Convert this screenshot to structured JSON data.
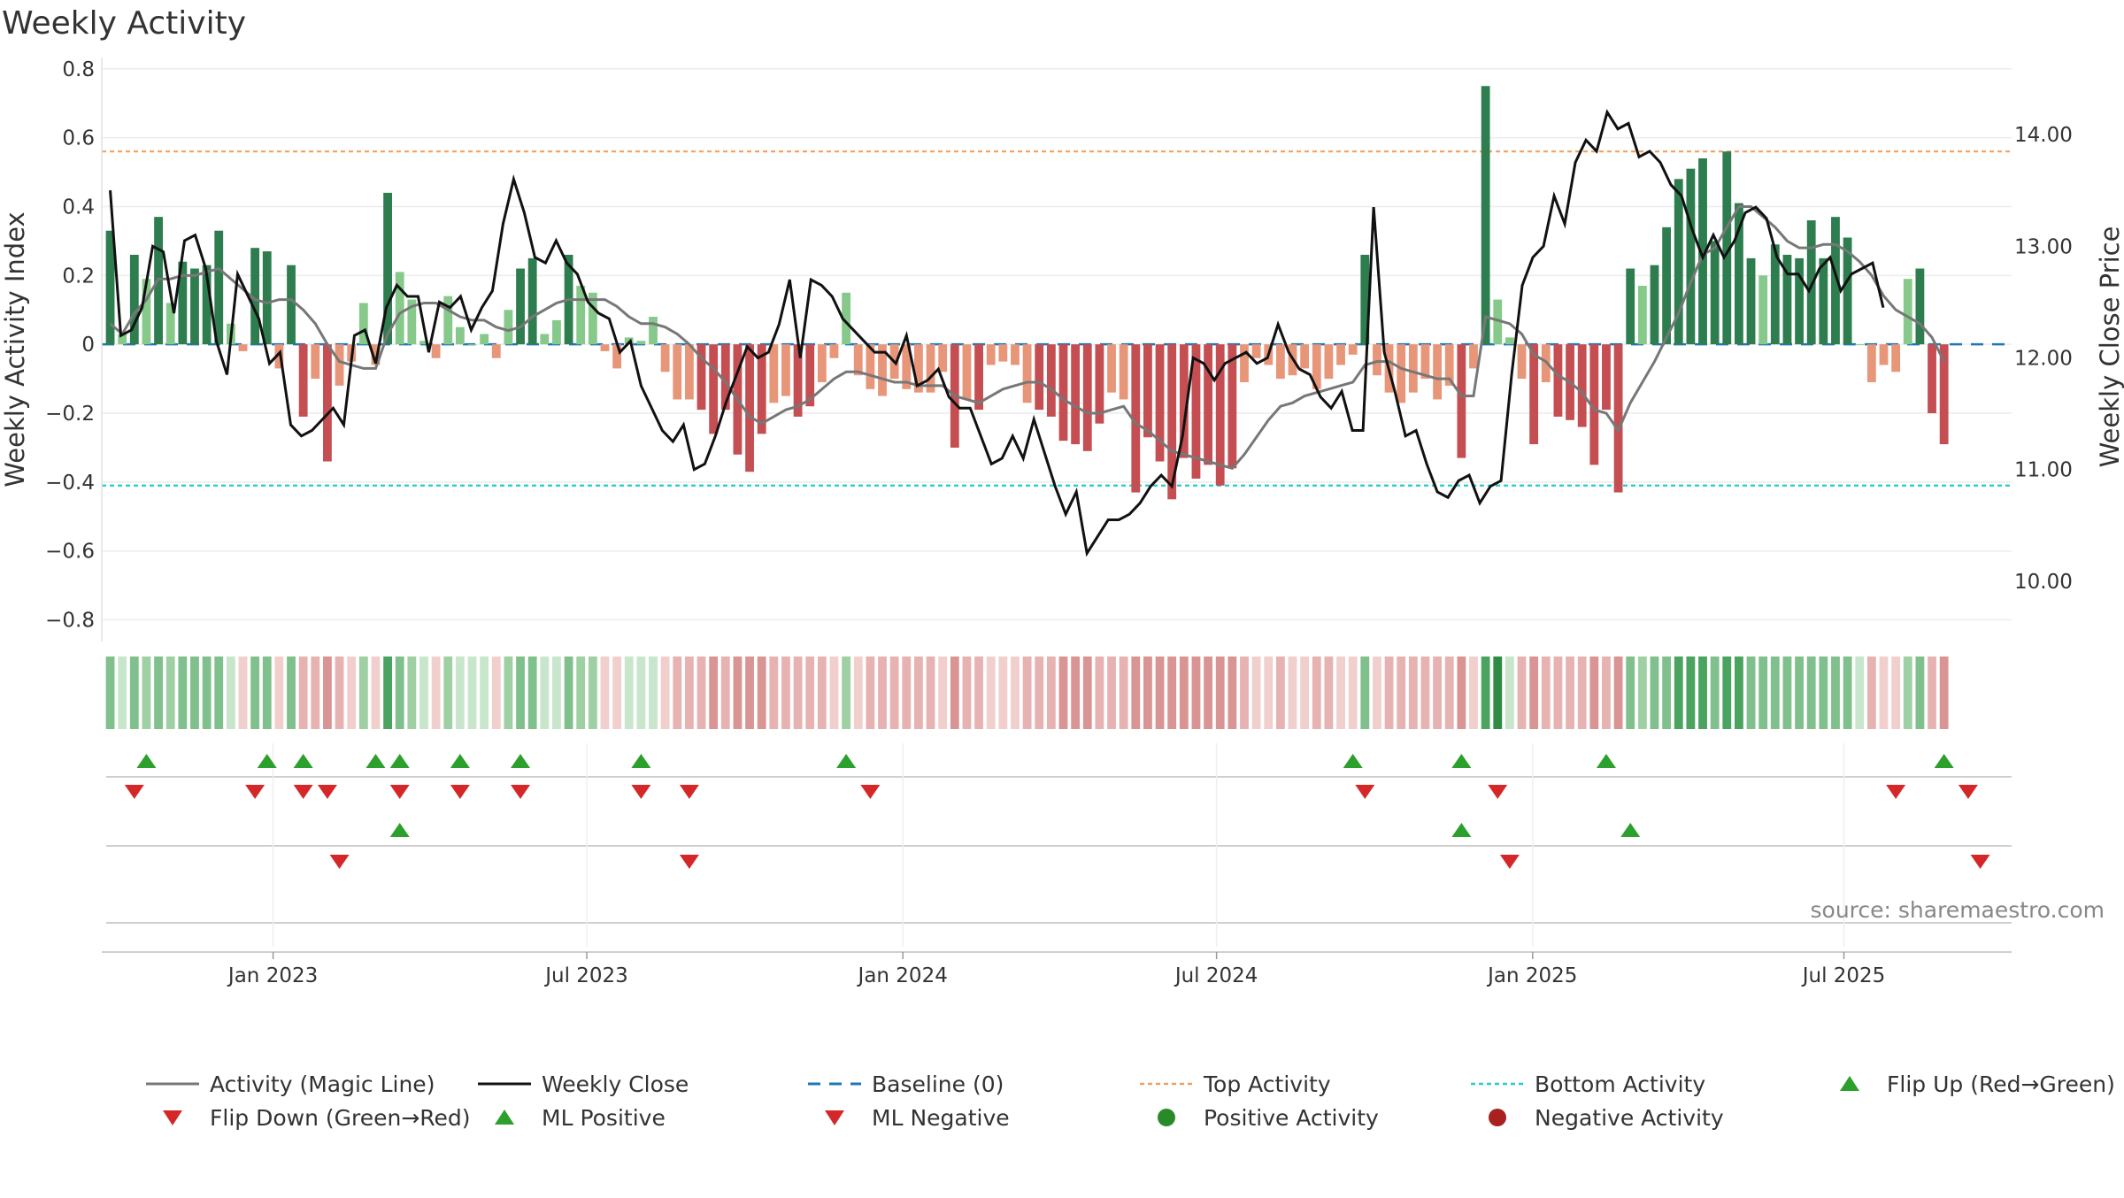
{
  "page": {
    "title": "Weekly Activity"
  },
  "source_text": "source: sharemaestro.com",
  "colors": {
    "dark_green": "#2e7d4f",
    "mid_green": "#5aaa6e",
    "light_green": "#86c98a",
    "pale_green": "#c4e6c6",
    "dark_red": "#c44e52",
    "mid_red": "#d9757a",
    "salmon": "#e8967a",
    "pale_red": "#f0c4c2",
    "magic_line": "#777777",
    "close_line": "#111111",
    "baseline": "#1f77b4",
    "top_line": "#f0a060",
    "bottom_line": "#22cccc",
    "flip_up": "#2ca02c",
    "flip_down": "#d62728"
  },
  "legend": [
    {
      "label": "Activity (Magic Line)",
      "icon": "gray-line"
    },
    {
      "label": "Weekly Close",
      "icon": "black-line"
    },
    {
      "label": "Baseline (0)",
      "icon": "blue-dashed-line"
    },
    {
      "label": "Top Activity",
      "icon": "orange-dotted-line"
    },
    {
      "label": "Bottom Activity",
      "icon": "cyan-dotted-line"
    },
    {
      "label": "Flip Up (Red→Green)",
      "icon": "green-up-triangle"
    },
    {
      "label": "Flip Down (Green→Red)",
      "icon": "red-down-triangle"
    },
    {
      "label": "ML Positive",
      "icon": "green-up-triangle"
    },
    {
      "label": "ML Negative",
      "icon": "red-down-triangle"
    },
    {
      "label": "Positive Activity",
      "icon": "green-dot"
    },
    {
      "label": "Negative Activity",
      "icon": "red-dot"
    }
  ],
  "chart_data": {
    "type": "bar",
    "title": "Weekly Activity",
    "ylabel": "Weekly Activity Index",
    "y2label": "Weekly Close Price",
    "ylim": [
      -0.85,
      0.82
    ],
    "y2lim": [
      9.5,
      14.65
    ],
    "yticks": [
      -0.8,
      -0.6,
      -0.4,
      -0.2,
      0,
      0.2,
      0.4,
      0.6,
      0.8
    ],
    "yticklabels": [
      "−0.8",
      "−0.6",
      "−0.4",
      "−0.2",
      "0",
      "0.2",
      "0.4",
      "0.6",
      "0.8"
    ],
    "y2ticks": [
      10,
      11,
      12,
      13,
      14
    ],
    "y2ticklabels": [
      "10.00",
      "11.00",
      "12.00",
      "13.00",
      "14.00"
    ],
    "x_start_date": "2022-10-10",
    "x_range_weeks": [
      -0.7,
      157.6
    ],
    "xticks": [
      {
        "week": 13.5,
        "label": "Jan 2023"
      },
      {
        "week": 39.5,
        "label": "Jul 2023"
      },
      {
        "week": 65.7,
        "label": "Jan 2024"
      },
      {
        "week": 91.7,
        "label": "Jul 2024"
      },
      {
        "week": 117.9,
        "label": "Jan 2025"
      },
      {
        "week": 143.7,
        "label": "Jul 2025"
      }
    ],
    "top_activity": 0.56,
    "bottom_activity": -0.41,
    "series": [
      {
        "name": "Weekly Activity Index (bars)",
        "values": [
          0.33,
          0.03,
          0.26,
          0.19,
          0.37,
          0.12,
          0.24,
          0.22,
          0.23,
          0.33,
          0.06,
          -0.02,
          0.28,
          0.27,
          -0.07,
          0.23,
          -0.21,
          -0.1,
          -0.34,
          -0.12,
          -0.05,
          0.12,
          -0.06,
          0.44,
          0.21,
          0.13,
          0.01,
          -0.04,
          0.14,
          0.05,
          0,
          0.03,
          -0.04,
          0.1,
          0.22,
          0.25,
          0.03,
          0.07,
          0.26,
          0.17,
          0.15,
          -0.02,
          -0.07,
          0.02,
          0.01,
          0.08,
          -0.08,
          -0.16,
          -0.16,
          -0.19,
          -0.26,
          -0.19,
          -0.32,
          -0.37,
          -0.26,
          -0.17,
          -0.15,
          -0.21,
          -0.18,
          -0.11,
          -0.04,
          0.15,
          -0.09,
          -0.13,
          -0.15,
          -0.1,
          -0.13,
          -0.14,
          -0.14,
          -0.08,
          -0.3,
          -0.16,
          -0.19,
          -0.06,
          -0.05,
          -0.06,
          -0.17,
          -0.19,
          -0.21,
          -0.28,
          -0.29,
          -0.31,
          -0.23,
          -0.14,
          -0.16,
          -0.43,
          -0.27,
          -0.34,
          -0.45,
          -0.33,
          -0.39,
          -0.35,
          -0.41,
          -0.36,
          -0.11,
          -0.04,
          -0.06,
          -0.1,
          -0.09,
          -0.07,
          -0.13,
          -0.1,
          -0.06,
          -0.03,
          0.26,
          -0.09,
          -0.14,
          -0.17,
          -0.14,
          -0.1,
          -0.16,
          -0.12,
          -0.33,
          -0.07,
          0.75,
          0.13,
          0.02,
          -0.1,
          -0.29,
          -0.11,
          -0.21,
          -0.22,
          -0.24,
          -0.35,
          -0.19,
          -0.43,
          0.22,
          0.17,
          0.23,
          0.34,
          0.48,
          0.51,
          0.54,
          0.3,
          0.56,
          0.41,
          0.25,
          0.2,
          0.29,
          0.26,
          0.25,
          0.36,
          0.25,
          0.37,
          0.31,
          0,
          -0.11,
          -0.06,
          -0.08,
          0.19,
          0.22,
          -0.2,
          -0.29
        ]
      },
      {
        "name": "Activity (Magic Line)",
        "values": [
          0.06,
          0.03,
          0.09,
          0.13,
          0.19,
          0.19,
          0.2,
          0.2,
          0.21,
          0.22,
          0.19,
          0.16,
          0.13,
          0.12,
          0.13,
          0.13,
          0.1,
          0.06,
          0.0,
          -0.05,
          -0.06,
          -0.07,
          -0.07,
          0.03,
          0.09,
          0.11,
          0.12,
          0.12,
          0.1,
          0.08,
          0.07,
          0.07,
          0.05,
          0.04,
          0.05,
          0.08,
          0.1,
          0.12,
          0.13,
          0.13,
          0.13,
          0.13,
          0.11,
          0.08,
          0.06,
          0.06,
          0.05,
          0.03,
          0.0,
          -0.04,
          -0.07,
          -0.11,
          -0.16,
          -0.21,
          -0.23,
          -0.21,
          -0.19,
          -0.18,
          -0.16,
          -0.13,
          -0.1,
          -0.08,
          -0.08,
          -0.09,
          -0.1,
          -0.11,
          -0.11,
          -0.12,
          -0.12,
          -0.12,
          -0.15,
          -0.16,
          -0.17,
          -0.15,
          -0.13,
          -0.12,
          -0.11,
          -0.11,
          -0.13,
          -0.16,
          -0.18,
          -0.2,
          -0.2,
          -0.19,
          -0.18,
          -0.23,
          -0.25,
          -0.28,
          -0.31,
          -0.32,
          -0.33,
          -0.34,
          -0.35,
          -0.36,
          -0.32,
          -0.27,
          -0.22,
          -0.18,
          -0.17,
          -0.15,
          -0.14,
          -0.13,
          -0.12,
          -0.11,
          -0.06,
          -0.05,
          -0.05,
          -0.07,
          -0.08,
          -0.09,
          -0.1,
          -0.1,
          -0.15,
          -0.15,
          0.08,
          0.07,
          0.06,
          0.03,
          -0.03,
          -0.05,
          -0.09,
          -0.11,
          -0.14,
          -0.19,
          -0.2,
          -0.25,
          -0.17,
          -0.11,
          -0.05,
          0.02,
          0.09,
          0.18,
          0.26,
          0.28,
          0.34,
          0.4,
          0.4,
          0.37,
          0.34,
          0.3,
          0.28,
          0.28,
          0.29,
          0.29,
          0.27,
          0.24,
          0.2,
          0.14,
          0.1,
          0.08,
          0.06,
          0.02,
          -0.05
        ]
      },
      {
        "name": "Weekly Close",
        "values": [
          13.5,
          12.2,
          12.25,
          12.45,
          13.0,
          12.95,
          12.4,
          13.05,
          13.1,
          12.8,
          12.15,
          11.85,
          12.75,
          12.55,
          12.35,
          11.95,
          12.05,
          11.4,
          11.3,
          11.35,
          11.45,
          11.55,
          11.4,
          12.2,
          12.25,
          11.95,
          12.45,
          12.65,
          12.55,
          12.55,
          12.05,
          12.5,
          12.45,
          12.55,
          12.25,
          12.45,
          12.6,
          13.2,
          13.6,
          13.3,
          12.9,
          12.85,
          13.05,
          12.85,
          12.75,
          12.5,
          12.4,
          12.35,
          12.05,
          12.15,
          11.75,
          11.55,
          11.35,
          11.25,
          11.4,
          11.0,
          11.05,
          11.3,
          11.6,
          11.85,
          12.1,
          12.0,
          12.05,
          12.3,
          12.7,
          12.0,
          12.7,
          12.65,
          12.55,
          12.35,
          12.25,
          12.15,
          12.05,
          12.05,
          11.95,
          12.2,
          11.75,
          11.8,
          11.9,
          11.65,
          11.55,
          11.55,
          11.3,
          11.05,
          11.1,
          11.3,
          11.1,
          11.45,
          11.15,
          10.85,
          10.6,
          10.8,
          10.25,
          10.4,
          10.55,
          10.55,
          10.6,
          10.7,
          10.85,
          10.95,
          10.85,
          11.3,
          12.0,
          11.95,
          11.8,
          11.95,
          12.0,
          12.05,
          11.95,
          12.0,
          12.3,
          12.05,
          11.9,
          11.85,
          11.65,
          11.55,
          11.7,
          11.35,
          11.35,
          13.35,
          12.05,
          11.7,
          11.3,
          11.35,
          11.05,
          10.8,
          10.75,
          10.9,
          10.95,
          10.7,
          10.85,
          10.9,
          11.85,
          12.65,
          12.9,
          13.0,
          13.45,
          13.2,
          13.75,
          13.95,
          13.85,
          14.2,
          14.05,
          14.1,
          13.8,
          13.85,
          13.75,
          13.55,
          13.45,
          13.15,
          12.9,
          13.1,
          12.9,
          13.05,
          13.3,
          13.35,
          13.25,
          12.9,
          12.75,
          12.75,
          12.6,
          12.8,
          12.9,
          12.6,
          12.75,
          12.8,
          12.85,
          12.45
        ],
        "x_scale": 0.88
      }
    ],
    "flip_up_weeks": [
      3,
      13,
      16,
      22,
      24,
      29,
      34,
      44,
      61,
      103,
      112,
      124,
      152
    ],
    "flip_down_weeks": [
      2,
      12,
      16,
      18,
      24,
      29,
      34,
      44,
      48,
      63,
      104,
      115,
      148,
      154
    ],
    "ml_positive_weeks": [
      24,
      112,
      126
    ],
    "ml_negative_weeks": [
      19,
      48,
      116,
      155
    ]
  }
}
